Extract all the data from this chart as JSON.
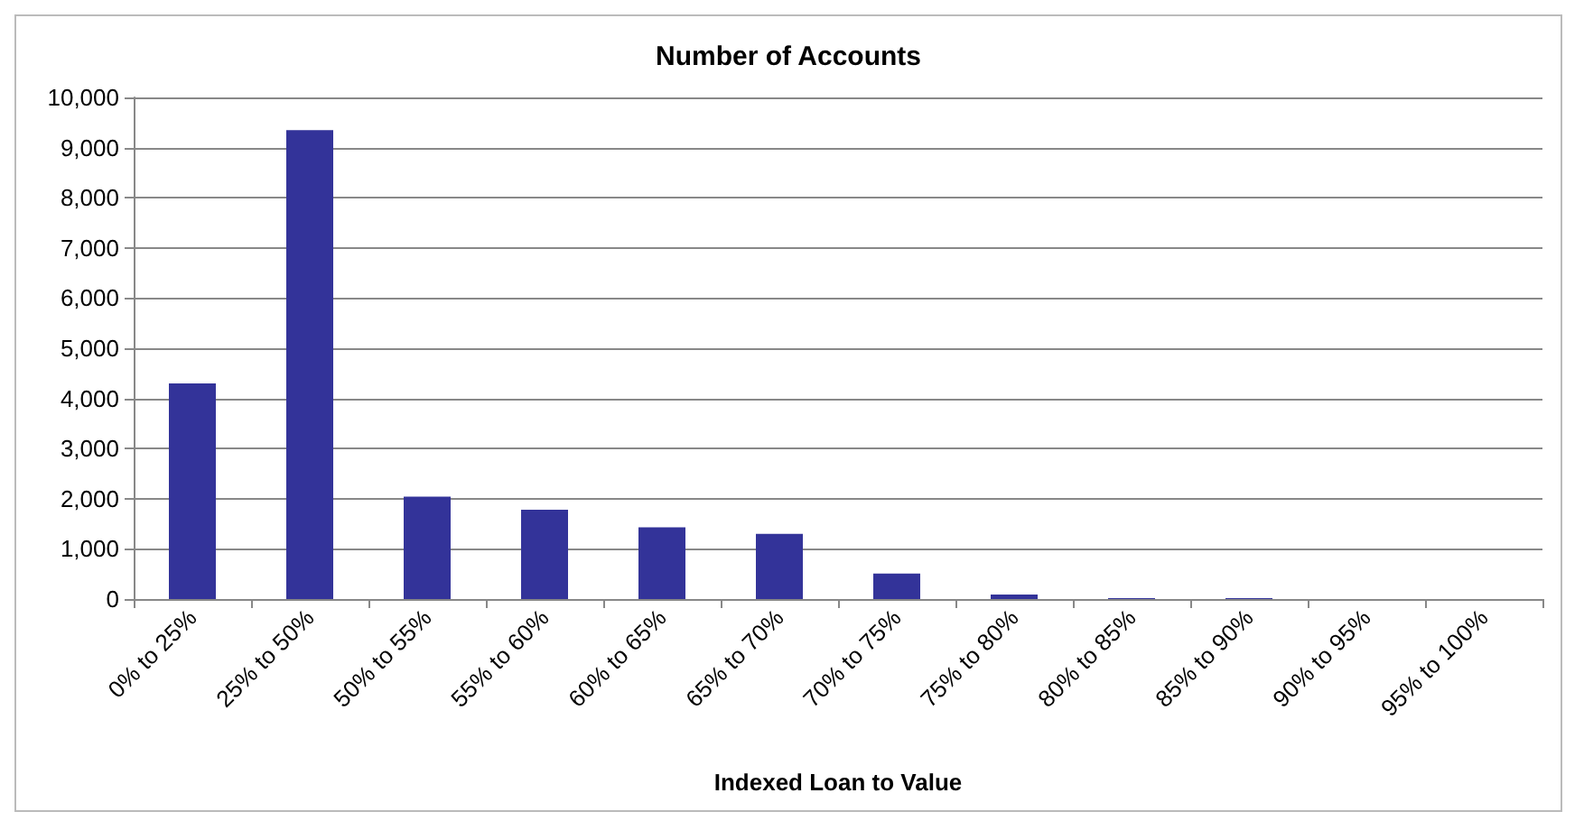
{
  "chart_data": {
    "type": "bar",
    "title": "Number of Accounts",
    "xlabel": "Indexed Loan to Value",
    "categories": [
      "0% to 25%",
      "25% to 50%",
      "50% to 55%",
      "55% to 60%",
      "60% to 65%",
      "65% to 70%",
      "70% to 75%",
      "75% to 80%",
      "80% to 85%",
      "85% to 90%",
      "90% to 95%",
      "95% to 100%"
    ],
    "values": [
      4300,
      9350,
      2040,
      1780,
      1430,
      1300,
      510,
      90,
      20,
      20,
      0,
      0
    ],
    "color": "#333399",
    "ylim": [
      0,
      10000
    ],
    "yticks": [
      0,
      {
        "value": 1000,
        "label": "1,000"
      },
      {
        "value": 2000,
        "label": "2,000"
      },
      {
        "value": 3000,
        "label": "3,000"
      },
      {
        "value": 4000,
        "label": "4,000"
      },
      {
        "value": 5000,
        "label": "5,000"
      },
      {
        "value": 6000,
        "label": "6,000"
      },
      {
        "value": 7000,
        "label": "7,000"
      },
      {
        "value": 8000,
        "label": "8,000"
      },
      {
        "value": 9000,
        "label": "9,000"
      },
      {
        "value": 10000,
        "label": "10,000"
      }
    ],
    "grid": "y"
  }
}
